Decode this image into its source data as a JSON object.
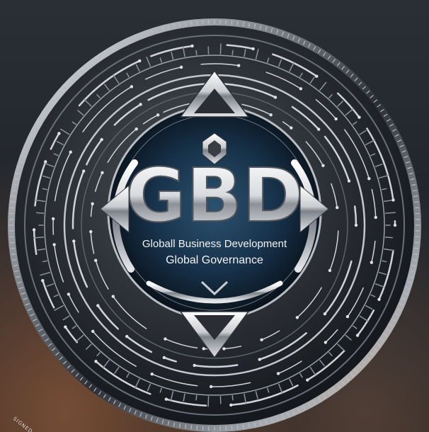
{
  "logo": {
    "monogram": "GBD",
    "line1": "Globall Business Development",
    "line2": "Global Governance",
    "edge_engraving": "SIGNED W",
    "colors": {
      "metal_light": "#e6e8ea",
      "metal_dark": "#3a3e44",
      "center_blue": "#1e3a52",
      "background": "#1f2329",
      "warm_glow": "#b46e46"
    },
    "emblem": "compass-circuit-coin"
  }
}
